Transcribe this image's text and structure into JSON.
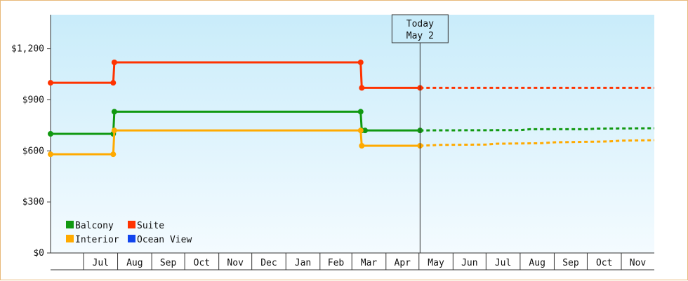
{
  "chart_data": {
    "type": "line",
    "title": "",
    "xlabel": "",
    "ylabel": "",
    "ylim": [
      0,
      1400
    ],
    "y_ticks": [
      {
        "value": 0,
        "label": "$0"
      },
      {
        "value": 300,
        "label": "$300"
      },
      {
        "value": 600,
        "label": "$600"
      },
      {
        "value": 900,
        "label": "$900"
      },
      {
        "value": 1200,
        "label": "$1,200"
      }
    ],
    "x_range": [
      "2023-06-01",
      "2024-12-01"
    ],
    "months": [
      {
        "start": "2023-06-01",
        "label": ""
      },
      {
        "start": "2023-07-01",
        "label": "Jul"
      },
      {
        "start": "2023-08-01",
        "label": "Aug"
      },
      {
        "start": "2023-09-01",
        "label": "Sep"
      },
      {
        "start": "2023-10-01",
        "label": "Oct"
      },
      {
        "start": "2023-11-01",
        "label": "Nov"
      },
      {
        "start": "2023-12-01",
        "label": "Dec"
      },
      {
        "start": "2024-01-01",
        "label": "Jan"
      },
      {
        "start": "2024-02-01",
        "label": "Feb"
      },
      {
        "start": "2024-03-01",
        "label": "Mar"
      },
      {
        "start": "2024-04-01",
        "label": "Apr"
      },
      {
        "start": "2024-05-01",
        "label": "May"
      },
      {
        "start": "2024-06-01",
        "label": "Jun"
      },
      {
        "start": "2024-07-01",
        "label": "Jul"
      },
      {
        "start": "2024-08-01",
        "label": "Aug"
      },
      {
        "start": "2024-09-01",
        "label": "Sep"
      },
      {
        "start": "2024-10-01",
        "label": "Oct"
      },
      {
        "start": "2024-11-01",
        "label": "Nov"
      }
    ],
    "today": {
      "date": "2024-05-02",
      "label_line1": "Today",
      "label_line2": "May 2"
    },
    "series": [
      {
        "name": "Balcony",
        "color": "#119911",
        "points": [
          [
            "2023-06-01",
            700
          ],
          [
            "2023-07-28",
            700
          ],
          [
            "2023-07-29",
            830
          ],
          [
            "2024-03-09",
            830
          ],
          [
            "2024-03-10",
            720
          ],
          [
            "2024-03-13",
            720
          ],
          [
            "2024-05-02",
            720
          ]
        ],
        "forecast": [
          [
            "2024-05-02",
            720
          ],
          [
            "2024-08-01",
            722
          ],
          [
            "2024-08-10",
            727
          ],
          [
            "2024-10-01",
            727
          ],
          [
            "2024-10-10",
            731
          ],
          [
            "2024-12-01",
            733
          ]
        ]
      },
      {
        "name": "Suite",
        "color": "#ff3300",
        "points": [
          [
            "2023-06-01",
            1000
          ],
          [
            "2023-07-28",
            1000
          ],
          [
            "2023-07-29",
            1120
          ],
          [
            "2024-03-09",
            1120
          ],
          [
            "2024-03-10",
            970
          ],
          [
            "2024-05-02",
            970
          ]
        ],
        "forecast": [
          [
            "2024-05-02",
            970
          ],
          [
            "2024-12-01",
            970
          ]
        ]
      },
      {
        "name": "Interior",
        "color": "#ffaa00",
        "points": [
          [
            "2023-06-01",
            580
          ],
          [
            "2023-07-28",
            580
          ],
          [
            "2023-07-29",
            720
          ],
          [
            "2024-03-09",
            720
          ],
          [
            "2024-03-10",
            630
          ],
          [
            "2024-05-02",
            630
          ]
        ],
        "forecast": [
          [
            "2024-05-02",
            630
          ],
          [
            "2024-05-20",
            635
          ],
          [
            "2024-07-01",
            637
          ],
          [
            "2024-07-10",
            642
          ],
          [
            "2024-08-20",
            645
          ],
          [
            "2024-09-01",
            650
          ],
          [
            "2024-10-20",
            655
          ],
          [
            "2024-11-01",
            660
          ],
          [
            "2024-12-01",
            663
          ]
        ]
      },
      {
        "name": "Ocean View",
        "color": "#1144ee",
        "points": [],
        "forecast": []
      }
    ],
    "grid": false,
    "legend_position": "bottom-left"
  }
}
